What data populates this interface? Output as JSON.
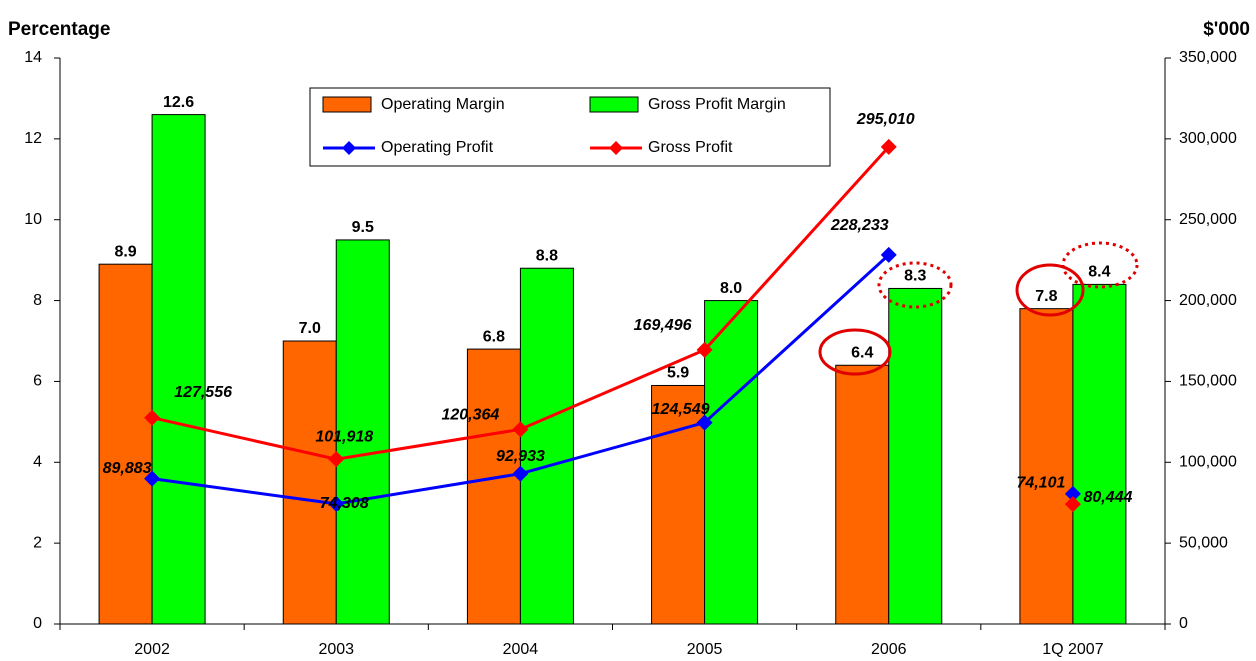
{
  "chart_data": {
    "type": "bar",
    "y_label": "Percentage",
    "y2_label": "$'000",
    "categories": [
      "2002",
      "2003",
      "2004",
      "2005",
      "2006",
      "1Q 2007"
    ],
    "ylim": [
      0,
      14
    ],
    "yticks": [
      0,
      2,
      4,
      6,
      8,
      10,
      12,
      14
    ],
    "y2lim": [
      0,
      350000
    ],
    "y2ticks": [
      0,
      {
        "value": 50000,
        "label": "50,000"
      },
      {
        "value": 100000,
        "label": "100,000"
      },
      {
        "value": 150000,
        "label": "150,000"
      },
      {
        "value": 200000,
        "label": "200,000"
      },
      {
        "value": 250000,
        "label": "250,000"
      },
      {
        "value": 300000,
        "label": "300,000"
      },
      {
        "value": 350000,
        "label": "350,000"
      }
    ],
    "line_through_last": false,
    "series": [
      {
        "name": "Operating Margin",
        "type": "bar",
        "color": "#ff6600",
        "values": [
          8.9,
          7.0,
          6.8,
          5.9,
          6.4,
          7.8
        ],
        "value_labels": [
          "8.9",
          "7.0",
          "6.8",
          "5.9",
          "6.4",
          "7.8"
        ]
      },
      {
        "name": "Gross Profit Margin",
        "type": "bar",
        "color": "#00ff00",
        "values": [
          12.6,
          9.5,
          8.8,
          8.0,
          8.3,
          8.4
        ],
        "value_labels": [
          "12.6",
          "9.5",
          "8.8",
          "8.0",
          "8.3",
          "8.4"
        ]
      },
      {
        "name": "Operating Profit",
        "type": "line",
        "axis": "y2",
        "color": "#0000ff",
        "values": [
          89883,
          74308,
          92933,
          124549,
          228233,
          80444
        ],
        "value_labels": [
          "89,883",
          "74,308",
          "92,933",
          "124,549",
          "228,233",
          "80,444"
        ]
      },
      {
        "name": "Gross Profit",
        "type": "line",
        "axis": "y2",
        "color": "#ff0000",
        "values": [
          127556,
          101918,
          120364,
          169496,
          295010,
          74101
        ],
        "value_labels": [
          "127,556",
          "101,918",
          "120,364",
          "169,496",
          "295,010",
          "74,101"
        ]
      }
    ]
  }
}
